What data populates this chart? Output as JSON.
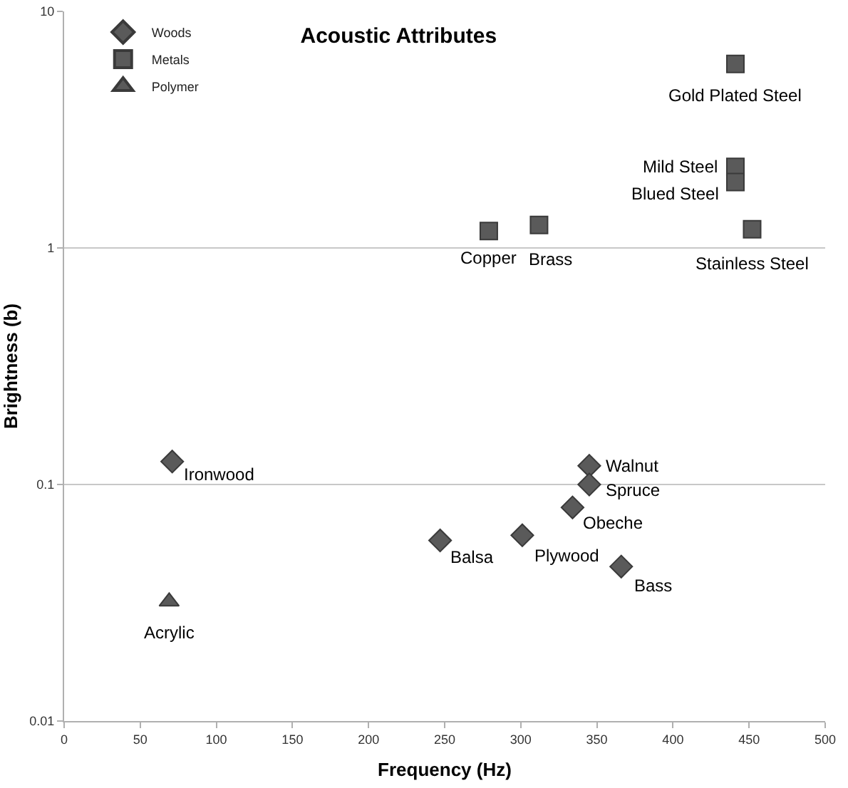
{
  "chart_data": {
    "type": "scatter",
    "title": "Acoustic Attributes",
    "xlabel": "Frequency (Hz)",
    "ylabel": "Brightness (b)",
    "series": [
      {
        "name": "Woods",
        "color": "#5a5a5a",
        "marker": "diamond",
        "x": [
          71,
          345,
          345,
          334,
          247,
          301,
          366
        ],
        "values": [
          0.125,
          0.12,
          0.1,
          0.08,
          0.058,
          0.061,
          0.045
        ]
      },
      {
        "name": "Metals",
        "color": "#5a5a5a",
        "marker": "square",
        "x": [
          441,
          441,
          441,
          279,
          312,
          452
        ],
        "values": [
          6,
          2.2,
          1.9,
          1.18,
          1.25,
          1.2
        ]
      },
      {
        "name": "Polymer",
        "color": "#5a5a5a",
        "marker": "triangle",
        "x": [
          69
        ],
        "values": [
          0.032
        ]
      }
    ],
    "annotations": [
      {
        "text": "Ironwood",
        "x": 71,
        "y": 0.125
      },
      {
        "text": "Walnut",
        "x": 345,
        "y": 0.12
      },
      {
        "text": "Spruce",
        "x": 345,
        "y": 0.1
      },
      {
        "text": "Obeche",
        "x": 334,
        "y": 0.08
      },
      {
        "text": "Balsa",
        "x": 247,
        "y": 0.058
      },
      {
        "text": "Plywood",
        "x": 301,
        "y": 0.061
      },
      {
        "text": "Bass",
        "x": 366,
        "y": 0.045
      },
      {
        "text": "Acrylic",
        "x": 69,
        "y": 0.032
      },
      {
        "text": "Gold Plated Steel",
        "x": 441,
        "y": 6
      },
      {
        "text": "Mild Steel",
        "x": 441,
        "y": 2.2
      },
      {
        "text": "Blued Steel",
        "x": 441,
        "y": 1.9
      },
      {
        "text": "Copper",
        "x": 279,
        "y": 1.18
      },
      {
        "text": "Brass",
        "x": 312,
        "y": 1.25
      },
      {
        "text": "Stainless Steel",
        "x": 452,
        "y": 1.2
      }
    ],
    "xlim": [
      0,
      500
    ],
    "xticks": [
      0,
      50,
      100,
      150,
      200,
      250,
      300,
      350,
      400,
      450,
      500
    ],
    "ylim": [
      0.01,
      10
    ],
    "yticks": [
      0.01,
      0.1,
      1,
      10
    ],
    "log": "y",
    "grid": "y",
    "legend": "top left"
  }
}
